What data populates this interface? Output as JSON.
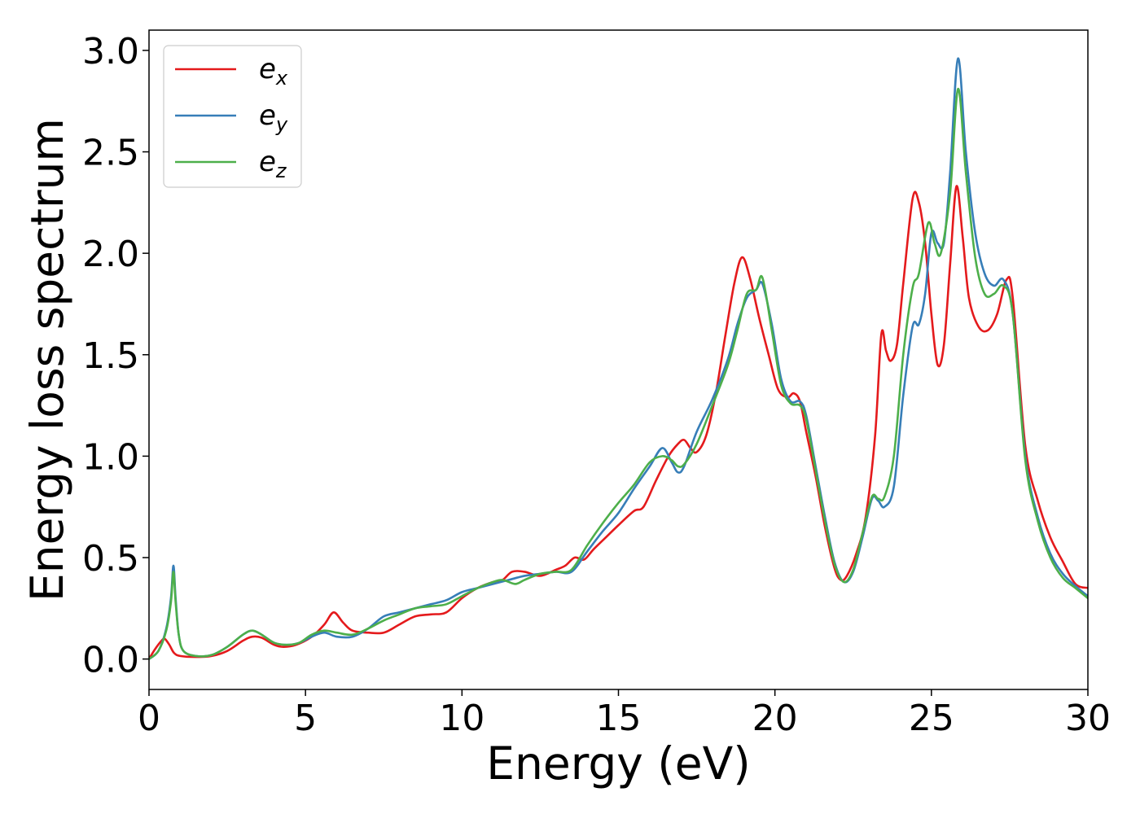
{
  "chart_data": {
    "type": "line",
    "xlabel": "Energy (eV)",
    "ylabel": "Energy loss spectrum",
    "xlim": [
      0,
      30
    ],
    "ylim": [
      -0.15,
      3.1
    ],
    "x_ticks": [
      0,
      5,
      10,
      15,
      20,
      25,
      30
    ],
    "y_ticks": [
      0.0,
      0.5,
      1.0,
      1.5,
      2.0,
      2.5,
      3.0
    ],
    "x_tick_labels": [
      "0",
      "5",
      "10",
      "15",
      "20",
      "25",
      "30"
    ],
    "y_tick_labels": [
      "0.0",
      "0.5",
      "1.0",
      "1.5",
      "2.0",
      "2.5",
      "3.0"
    ],
    "grid": false,
    "legend_position": "top-left",
    "series": [
      {
        "name": "e",
        "subscript": "x",
        "color": "#e41a1c",
        "points": [
          [
            0,
            0
          ],
          [
            0.2,
            0.05
          ],
          [
            0.4,
            0.09
          ],
          [
            0.5,
            0.1
          ],
          [
            0.65,
            0.07
          ],
          [
            0.8,
            0.03
          ],
          [
            1.0,
            0.015
          ],
          [
            1.5,
            0.01
          ],
          [
            2.0,
            0.015
          ],
          [
            2.5,
            0.04
          ],
          [
            3.0,
            0.09
          ],
          [
            3.3,
            0.11
          ],
          [
            3.6,
            0.105
          ],
          [
            4.0,
            0.07
          ],
          [
            4.3,
            0.06
          ],
          [
            4.7,
            0.07
          ],
          [
            5.2,
            0.11
          ],
          [
            5.6,
            0.17
          ],
          [
            5.9,
            0.23
          ],
          [
            6.2,
            0.18
          ],
          [
            6.5,
            0.14
          ],
          [
            7.0,
            0.13
          ],
          [
            7.5,
            0.13
          ],
          [
            8.0,
            0.17
          ],
          [
            8.5,
            0.21
          ],
          [
            9.0,
            0.22
          ],
          [
            9.5,
            0.23
          ],
          [
            10.0,
            0.3
          ],
          [
            10.5,
            0.35
          ],
          [
            11.0,
            0.38
          ],
          [
            11.3,
            0.39
          ],
          [
            11.6,
            0.43
          ],
          [
            12.0,
            0.43
          ],
          [
            12.5,
            0.41
          ],
          [
            13.0,
            0.44
          ],
          [
            13.3,
            0.46
          ],
          [
            13.6,
            0.5
          ],
          [
            13.9,
            0.49
          ],
          [
            14.2,
            0.54
          ],
          [
            14.6,
            0.6
          ],
          [
            15.0,
            0.66
          ],
          [
            15.5,
            0.73
          ],
          [
            15.8,
            0.75
          ],
          [
            16.2,
            0.88
          ],
          [
            16.6,
            1.0
          ],
          [
            16.9,
            1.06
          ],
          [
            17.1,
            1.08
          ],
          [
            17.3,
            1.04
          ],
          [
            17.5,
            1.02
          ],
          [
            17.8,
            1.1
          ],
          [
            18.1,
            1.3
          ],
          [
            18.4,
            1.58
          ],
          [
            18.7,
            1.85
          ],
          [
            18.95,
            1.98
          ],
          [
            19.2,
            1.88
          ],
          [
            19.5,
            1.68
          ],
          [
            19.8,
            1.5
          ],
          [
            20.1,
            1.33
          ],
          [
            20.4,
            1.29
          ],
          [
            20.6,
            1.31
          ],
          [
            20.8,
            1.27
          ],
          [
            21.0,
            1.12
          ],
          [
            21.3,
            0.9
          ],
          [
            21.6,
            0.65
          ],
          [
            21.9,
            0.45
          ],
          [
            22.1,
            0.39
          ],
          [
            22.3,
            0.41
          ],
          [
            22.6,
            0.52
          ],
          [
            22.9,
            0.7
          ],
          [
            23.2,
            1.1
          ],
          [
            23.4,
            1.6
          ],
          [
            23.55,
            1.52
          ],
          [
            23.7,
            1.47
          ],
          [
            23.9,
            1.55
          ],
          [
            24.1,
            1.85
          ],
          [
            24.4,
            2.27
          ],
          [
            24.6,
            2.25
          ],
          [
            24.8,
            2.05
          ],
          [
            25.0,
            1.7
          ],
          [
            25.2,
            1.45
          ],
          [
            25.4,
            1.55
          ],
          [
            25.6,
            1.95
          ],
          [
            25.8,
            2.33
          ],
          [
            26.0,
            2.08
          ],
          [
            26.2,
            1.78
          ],
          [
            26.5,
            1.64
          ],
          [
            26.8,
            1.62
          ],
          [
            27.1,
            1.7
          ],
          [
            27.4,
            1.87
          ],
          [
            27.6,
            1.78
          ],
          [
            28.0,
            1.05
          ],
          [
            28.4,
            0.78
          ],
          [
            28.8,
            0.6
          ],
          [
            29.2,
            0.48
          ],
          [
            29.6,
            0.37
          ],
          [
            30.0,
            0.35
          ]
        ]
      },
      {
        "name": "e",
        "subscript": "y",
        "color": "#377eb8",
        "points": [
          [
            0,
            0
          ],
          [
            0.3,
            0.04
          ],
          [
            0.55,
            0.15
          ],
          [
            0.7,
            0.3
          ],
          [
            0.78,
            0.46
          ],
          [
            0.85,
            0.3
          ],
          [
            0.95,
            0.12
          ],
          [
            1.1,
            0.04
          ],
          [
            1.5,
            0.015
          ],
          [
            2.0,
            0.02
          ],
          [
            2.5,
            0.06
          ],
          [
            3.0,
            0.12
          ],
          [
            3.3,
            0.14
          ],
          [
            3.6,
            0.12
          ],
          [
            4.0,
            0.08
          ],
          [
            4.4,
            0.07
          ],
          [
            4.8,
            0.08
          ],
          [
            5.2,
            0.11
          ],
          [
            5.6,
            0.13
          ],
          [
            6.0,
            0.11
          ],
          [
            6.5,
            0.11
          ],
          [
            7.0,
            0.15
          ],
          [
            7.5,
            0.21
          ],
          [
            8.0,
            0.23
          ],
          [
            8.5,
            0.25
          ],
          [
            9.0,
            0.27
          ],
          [
            9.5,
            0.29
          ],
          [
            10.0,
            0.33
          ],
          [
            10.5,
            0.35
          ],
          [
            11.0,
            0.37
          ],
          [
            11.5,
            0.39
          ],
          [
            12.0,
            0.41
          ],
          [
            12.5,
            0.42
          ],
          [
            13.0,
            0.43
          ],
          [
            13.5,
            0.43
          ],
          [
            14.0,
            0.53
          ],
          [
            14.5,
            0.63
          ],
          [
            15.0,
            0.72
          ],
          [
            15.5,
            0.84
          ],
          [
            16.0,
            0.95
          ],
          [
            16.4,
            1.04
          ],
          [
            16.7,
            0.97
          ],
          [
            16.9,
            0.92
          ],
          [
            17.1,
            0.95
          ],
          [
            17.5,
            1.12
          ],
          [
            18.0,
            1.28
          ],
          [
            18.5,
            1.48
          ],
          [
            18.8,
            1.65
          ],
          [
            19.1,
            1.78
          ],
          [
            19.4,
            1.82
          ],
          [
            19.6,
            1.85
          ],
          [
            19.9,
            1.65
          ],
          [
            20.2,
            1.38
          ],
          [
            20.5,
            1.27
          ],
          [
            20.8,
            1.27
          ],
          [
            21.0,
            1.2
          ],
          [
            21.3,
            0.95
          ],
          [
            21.6,
            0.7
          ],
          [
            21.9,
            0.48
          ],
          [
            22.2,
            0.38
          ],
          [
            22.5,
            0.43
          ],
          [
            22.8,
            0.6
          ],
          [
            23.1,
            0.79
          ],
          [
            23.3,
            0.78
          ],
          [
            23.5,
            0.75
          ],
          [
            23.8,
            0.85
          ],
          [
            24.1,
            1.3
          ],
          [
            24.4,
            1.64
          ],
          [
            24.6,
            1.65
          ],
          [
            24.8,
            1.8
          ],
          [
            25.0,
            2.1
          ],
          [
            25.2,
            2.05
          ],
          [
            25.4,
            2.05
          ],
          [
            25.6,
            2.4
          ],
          [
            25.85,
            2.96
          ],
          [
            26.1,
            2.5
          ],
          [
            26.4,
            2.1
          ],
          [
            26.7,
            1.9
          ],
          [
            27.0,
            1.84
          ],
          [
            27.3,
            1.87
          ],
          [
            27.6,
            1.7
          ],
          [
            28.0,
            1.0
          ],
          [
            28.4,
            0.7
          ],
          [
            28.8,
            0.52
          ],
          [
            29.2,
            0.42
          ],
          [
            29.6,
            0.36
          ],
          [
            30.0,
            0.31
          ]
        ]
      },
      {
        "name": "e",
        "subscript": "z",
        "color": "#4daf4a",
        "points": [
          [
            0,
            0
          ],
          [
            0.3,
            0.04
          ],
          [
            0.55,
            0.14
          ],
          [
            0.7,
            0.28
          ],
          [
            0.78,
            0.43
          ],
          [
            0.85,
            0.28
          ],
          [
            0.95,
            0.12
          ],
          [
            1.1,
            0.04
          ],
          [
            1.5,
            0.015
          ],
          [
            2.0,
            0.02
          ],
          [
            2.5,
            0.06
          ],
          [
            3.0,
            0.12
          ],
          [
            3.3,
            0.14
          ],
          [
            3.6,
            0.12
          ],
          [
            4.0,
            0.08
          ],
          [
            4.4,
            0.07
          ],
          [
            4.8,
            0.08
          ],
          [
            5.2,
            0.12
          ],
          [
            5.6,
            0.14
          ],
          [
            6.0,
            0.13
          ],
          [
            6.5,
            0.12
          ],
          [
            7.0,
            0.15
          ],
          [
            7.5,
            0.19
          ],
          [
            8.0,
            0.22
          ],
          [
            8.5,
            0.25
          ],
          [
            9.0,
            0.26
          ],
          [
            9.5,
            0.27
          ],
          [
            10.0,
            0.31
          ],
          [
            10.5,
            0.35
          ],
          [
            11.0,
            0.38
          ],
          [
            11.3,
            0.39
          ],
          [
            11.7,
            0.37
          ],
          [
            12.0,
            0.39
          ],
          [
            12.5,
            0.42
          ],
          [
            13.0,
            0.43
          ],
          [
            13.5,
            0.44
          ],
          [
            14.0,
            0.56
          ],
          [
            14.5,
            0.67
          ],
          [
            15.0,
            0.77
          ],
          [
            15.5,
            0.86
          ],
          [
            16.0,
            0.97
          ],
          [
            16.4,
            1.0
          ],
          [
            16.7,
            0.98
          ],
          [
            16.9,
            0.95
          ],
          [
            17.1,
            0.96
          ],
          [
            17.5,
            1.06
          ],
          [
            18.0,
            1.25
          ],
          [
            18.5,
            1.45
          ],
          [
            18.8,
            1.62
          ],
          [
            19.1,
            1.8
          ],
          [
            19.4,
            1.82
          ],
          [
            19.6,
            1.88
          ],
          [
            19.9,
            1.62
          ],
          [
            20.2,
            1.35
          ],
          [
            20.5,
            1.26
          ],
          [
            20.8,
            1.25
          ],
          [
            21.0,
            1.18
          ],
          [
            21.3,
            0.93
          ],
          [
            21.6,
            0.68
          ],
          [
            21.9,
            0.47
          ],
          [
            22.2,
            0.38
          ],
          [
            22.5,
            0.44
          ],
          [
            22.8,
            0.62
          ],
          [
            23.1,
            0.8
          ],
          [
            23.3,
            0.79
          ],
          [
            23.5,
            0.8
          ],
          [
            23.8,
            1.0
          ],
          [
            24.1,
            1.5
          ],
          [
            24.4,
            1.83
          ],
          [
            24.6,
            1.9
          ],
          [
            24.9,
            2.15
          ],
          [
            25.1,
            2.05
          ],
          [
            25.3,
            2.0
          ],
          [
            25.6,
            2.3
          ],
          [
            25.85,
            2.81
          ],
          [
            26.1,
            2.4
          ],
          [
            26.4,
            1.98
          ],
          [
            26.7,
            1.8
          ],
          [
            27.0,
            1.8
          ],
          [
            27.3,
            1.84
          ],
          [
            27.6,
            1.7
          ],
          [
            28.0,
            0.98
          ],
          [
            28.4,
            0.68
          ],
          [
            28.8,
            0.5
          ],
          [
            29.2,
            0.4
          ],
          [
            29.6,
            0.35
          ],
          [
            30.0,
            0.3
          ]
        ]
      }
    ]
  }
}
